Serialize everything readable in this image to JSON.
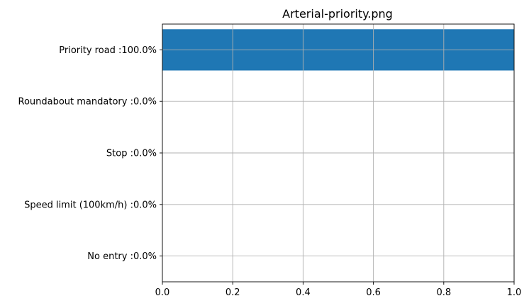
{
  "chart_data": {
    "type": "bar",
    "orientation": "horizontal",
    "title": "Arterial-priority.png",
    "xlabel": "",
    "ylabel": "",
    "categories": [
      "Priority road :100.0%",
      "Roundabout mandatory :0.0%",
      "Stop :0.0%",
      "Speed limit (100km/h) :0.0%",
      "No entry :0.0%"
    ],
    "values": [
      1.0,
      0.0,
      0.0,
      0.0,
      0.0
    ],
    "xlim": [
      0,
      1
    ],
    "xticks": [
      "0.0",
      "0.2",
      "0.4",
      "0.6",
      "0.8",
      "1.0"
    ],
    "grid": true,
    "bar_color": "#1f77b4",
    "grid_color": "#b0b0b0"
  }
}
